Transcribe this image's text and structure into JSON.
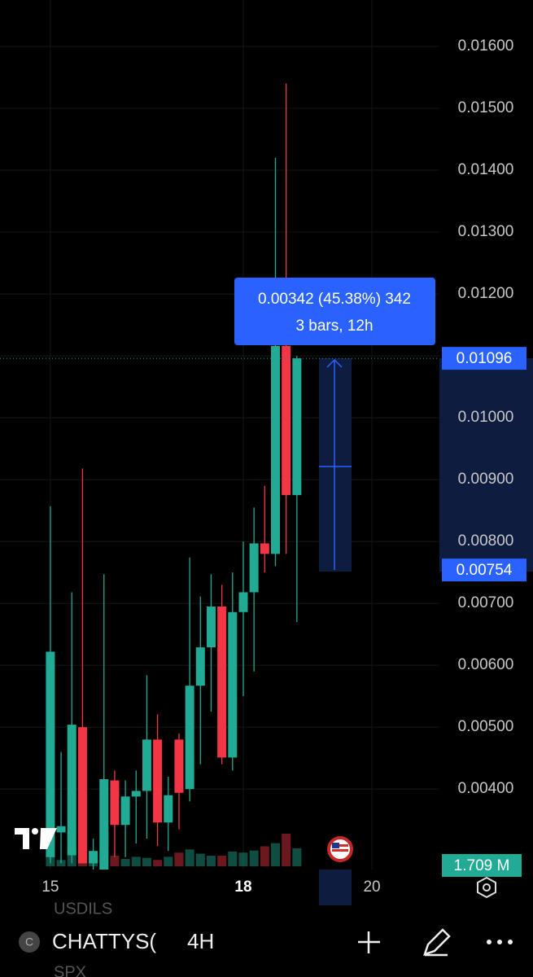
{
  "chart_data": {
    "type": "candlestick",
    "x": [
      0,
      1,
      2,
      3,
      4,
      5,
      6,
      7,
      8,
      9,
      10,
      11,
      12,
      13,
      14,
      15,
      16,
      17,
      18,
      19,
      20,
      21,
      22,
      23
    ],
    "open": [
      0.0029,
      0.0033,
      0.00293,
      0.005,
      0.0028,
      0.0027,
      0.00414,
      0.00342,
      0.00388,
      0.00397,
      0.0048,
      0.00346,
      0.0048,
      0.004,
      0.00567,
      0.00629,
      0.00695,
      0.00451,
      0.00686,
      0.00718,
      0.00797,
      0.0078,
      0.01116,
      0.00875
    ],
    "high": [
      0.00857,
      0.0046,
      0.00718,
      0.00918,
      0.0032,
      0.00747,
      0.0043,
      0.00414,
      0.0043,
      0.00584,
      0.00521,
      0.0042,
      0.0049,
      0.00774,
      0.00711,
      0.00747,
      0.0073,
      0.0075,
      0.008,
      0.00855,
      0.0089,
      0.0142,
      0.0154,
      0.011
    ],
    "low": [
      0.0028,
      0.0028,
      0.0028,
      0.0028,
      0.0027,
      0.0027,
      0.0029,
      0.0029,
      0.00312,
      0.0032,
      0.00308,
      0.003,
      0.00335,
      0.0038,
      0.0044,
      0.00525,
      0.0044,
      0.0043,
      0.0055,
      0.0059,
      0.0075,
      0.0076,
      0.0078,
      0.0067
    ],
    "close": [
      0.00622,
      0.0034,
      0.00504,
      0.0028,
      0.003,
      0.00416,
      0.00342,
      0.00388,
      0.00397,
      0.0048,
      0.00346,
      0.0039,
      0.00394,
      0.00567,
      0.00629,
      0.00695,
      0.00451,
      0.00686,
      0.00718,
      0.00797,
      0.0078,
      0.01116,
      0.00875,
      0.01096
    ],
    "volume": [
      1.2,
      0.6,
      1.5,
      1.7,
      0.5,
      1.6,
      1.0,
      0.7,
      0.9,
      0.8,
      0.6,
      0.9,
      1.3,
      1.6,
      1.2,
      1.0,
      1.0,
      1.4,
      1.3,
      1.5,
      1.9,
      2.2,
      3.1,
      1.709
    ],
    "up_color": "#22ab94",
    "down_color": "#f23645",
    "ylim": [
      0.0027,
      0.01675
    ],
    "yticks": [
      {
        "value": 0.004,
        "label": "0.00400"
      },
      {
        "value": 0.005,
        "label": "0.00500"
      },
      {
        "value": 0.006,
        "label": "0.00600"
      },
      {
        "value": 0.007,
        "label": "0.00700"
      },
      {
        "value": 0.008,
        "label": "0.00800"
      },
      {
        "value": 0.009,
        "label": "0.00900"
      },
      {
        "value": 0.01,
        "label": "0.01000"
      },
      {
        "value": 0.011,
        "label": "0.01100"
      },
      {
        "value": 0.012,
        "label": "0.01200"
      },
      {
        "value": 0.013,
        "label": "0.01300"
      },
      {
        "value": 0.014,
        "label": "0.01400"
      },
      {
        "value": 0.015,
        "label": "0.01500"
      },
      {
        "value": 0.016,
        "label": "0.01600"
      }
    ],
    "xlim": [
      -4.7,
      36.3
    ],
    "xticks": [
      {
        "value": 0,
        "label": "15"
      },
      {
        "value": 18,
        "label": "18"
      },
      {
        "value": 30,
        "label": "20"
      }
    ],
    "volume_lim": [
      0,
      10
    ],
    "grid": true,
    "price_labels": [
      {
        "value": 0.01096,
        "label": "0.01096"
      },
      {
        "value": 0.00754,
        "label": "0.00754"
      }
    ],
    "volume_label": {
      "value": 1.709,
      "label": "1.709 M"
    },
    "measure": {
      "text": "0.00342 (45.38%) 342",
      "bars_text": "3 bars, 12h"
    }
  },
  "toolbar": {
    "icon_letter": "C",
    "symbol": "CHATTYS(",
    "interval": "4H",
    "ghost_top": "USDILS",
    "ghost_bottom": "SPX"
  }
}
